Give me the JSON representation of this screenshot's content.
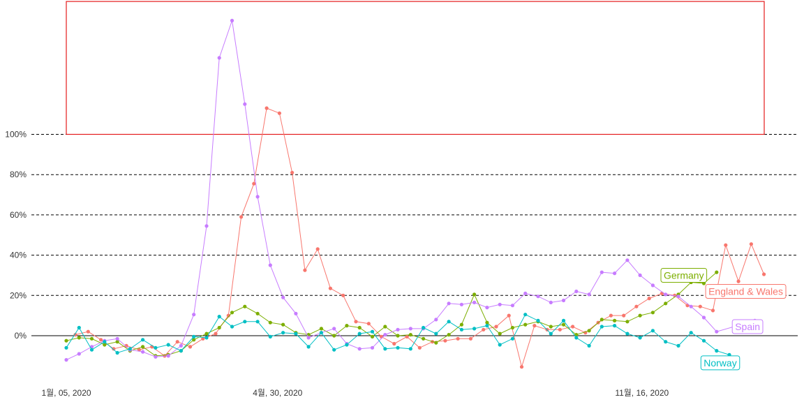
{
  "chart_data": {
    "type": "line",
    "y_unit": "%",
    "ylim": [
      -20,
      160
    ],
    "y_ticks": [
      0,
      20,
      40,
      60,
      80,
      100
    ],
    "y_tick_labels": [
      "0%",
      "20%",
      "40%",
      "60%",
      "80%",
      "100%"
    ],
    "x_start": "2020-01-05",
    "x_tick_labels": [
      {
        "date": "2020-01-05",
        "label": "1월, 05, 2020"
      },
      {
        "date": "2020-04-30",
        "label": "4월, 30, 2020"
      },
      {
        "date": "2020-11-16",
        "label": "11월, 16, 2020"
      }
    ],
    "grid": "dashed horizontal at y ticks",
    "legend": "direct labels at line ends",
    "highlight_box": {
      "y_from": 100,
      "y_to": 166,
      "color": "#e41a1c"
    },
    "series": [
      {
        "name": "England & Wales",
        "color": "#f8766d",
        "label_at": {
          "date": "2021-01-12",
          "value": 22
        },
        "points": [
          [
            "2020-01-10",
            0.5
          ],
          [
            "2020-01-17",
            2
          ],
          [
            "2020-01-24",
            -2
          ],
          [
            "2020-01-31",
            -6.5
          ],
          [
            "2020-02-07",
            -5
          ],
          [
            "2020-02-14",
            -7
          ],
          [
            "2020-02-21",
            -5.5
          ],
          [
            "2020-02-28",
            -10
          ],
          [
            "2020-03-06",
            -3
          ],
          [
            "2020-03-13",
            -5.5
          ],
          [
            "2020-03-20",
            -1.5
          ],
          [
            "2020-03-27",
            1
          ],
          [
            "2020-04-03",
            10
          ],
          [
            "2020-04-10",
            59
          ],
          [
            "2020-04-17",
            75.5
          ],
          [
            "2020-04-24",
            113
          ],
          [
            "2020-05-01",
            110.5
          ],
          [
            "2020-05-08",
            81
          ],
          [
            "2020-05-15",
            32.5
          ],
          [
            "2020-05-22",
            43
          ],
          [
            "2020-05-29",
            23.5
          ],
          [
            "2020-06-05",
            20
          ],
          [
            "2020-06-12",
            7
          ],
          [
            "2020-06-19",
            6
          ],
          [
            "2020-06-26",
            -0.5
          ],
          [
            "2020-07-03",
            -4
          ],
          [
            "2020-07-10",
            -0.5
          ],
          [
            "2020-07-17",
            -6
          ],
          [
            "2020-07-24",
            -3
          ],
          [
            "2020-07-31",
            -2.5
          ],
          [
            "2020-08-07",
            -1.5
          ],
          [
            "2020-08-14",
            -1.5
          ],
          [
            "2020-08-21",
            3
          ],
          [
            "2020-08-28",
            4.5
          ],
          [
            "2020-09-04",
            10
          ],
          [
            "2020-09-11",
            -15.5
          ],
          [
            "2020-09-18",
            5
          ],
          [
            "2020-09-25",
            3
          ],
          [
            "2020-10-02",
            3
          ],
          [
            "2020-10-09",
            4.5
          ],
          [
            "2020-10-16",
            1.5
          ],
          [
            "2020-10-23",
            6.5
          ],
          [
            "2020-10-30",
            10
          ],
          [
            "2020-11-06",
            10
          ],
          [
            "2020-11-13",
            14.5
          ],
          [
            "2020-11-20",
            18.5
          ],
          [
            "2020-11-27",
            21
          ],
          [
            "2020-12-04",
            20
          ],
          [
            "2020-12-11",
            15
          ],
          [
            "2020-12-18",
            14.5
          ],
          [
            "2020-12-25",
            12.5
          ],
          [
            "2021-01-01",
            45
          ],
          [
            "2021-01-08",
            27
          ],
          [
            "2021-01-15",
            45.5
          ],
          [
            "2021-01-22",
            30.5
          ]
        ]
      },
      {
        "name": "Germany",
        "color": "#7cae00",
        "label_at": {
          "date": "2020-12-09",
          "value": 30
        },
        "points": [
          [
            "2020-01-05",
            -2.5
          ],
          [
            "2020-01-12",
            -1
          ],
          [
            "2020-01-19",
            -1.5
          ],
          [
            "2020-01-26",
            -4.5
          ],
          [
            "2020-02-02",
            -3
          ],
          [
            "2020-02-09",
            -7.5
          ],
          [
            "2020-02-16",
            -5.5
          ],
          [
            "2020-02-23",
            -10
          ],
          [
            "2020-03-01",
            -9.5
          ],
          [
            "2020-03-08",
            -7.5
          ],
          [
            "2020-03-15",
            -2
          ],
          [
            "2020-03-22",
            1
          ],
          [
            "2020-03-29",
            4
          ],
          [
            "2020-04-05",
            11.5
          ],
          [
            "2020-04-12",
            14.5
          ],
          [
            "2020-04-19",
            11
          ],
          [
            "2020-04-26",
            6.5
          ],
          [
            "2020-05-03",
            5.5
          ],
          [
            "2020-05-10",
            1.5
          ],
          [
            "2020-05-17",
            0.5
          ],
          [
            "2020-05-24",
            3.5
          ],
          [
            "2020-05-31",
            0
          ],
          [
            "2020-06-07",
            5
          ],
          [
            "2020-06-14",
            4
          ],
          [
            "2020-06-21",
            -0.5
          ],
          [
            "2020-06-28",
            4.5
          ],
          [
            "2020-07-05",
            0
          ],
          [
            "2020-07-12",
            0.5
          ],
          [
            "2020-07-19",
            -1.5
          ],
          [
            "2020-07-26",
            -3.5
          ],
          [
            "2020-08-02",
            0.5
          ],
          [
            "2020-08-09",
            5.5
          ],
          [
            "2020-08-16",
            20.5
          ],
          [
            "2020-08-23",
            6.5
          ],
          [
            "2020-08-30",
            1
          ],
          [
            "2020-09-06",
            4
          ],
          [
            "2020-09-13",
            5.5
          ],
          [
            "2020-09-20",
            7
          ],
          [
            "2020-09-27",
            4.5
          ],
          [
            "2020-10-04",
            5.5
          ],
          [
            "2020-10-11",
            0.5
          ],
          [
            "2020-10-18",
            2.5
          ],
          [
            "2020-10-25",
            8
          ],
          [
            "2020-11-01",
            7.5
          ],
          [
            "2020-11-08",
            7
          ],
          [
            "2020-11-15",
            10
          ],
          [
            "2020-11-22",
            11.5
          ],
          [
            "2020-11-29",
            16
          ],
          [
            "2020-12-06",
            20.5
          ],
          [
            "2020-12-13",
            26.5
          ],
          [
            "2020-12-20",
            26
          ],
          [
            "2020-12-27",
            31.5
          ]
        ]
      },
      {
        "name": "Spain",
        "color": "#c77cff",
        "label_at": {
          "date": "2021-01-13",
          "value": 4.5
        },
        "points": [
          [
            "2020-01-05",
            -12
          ],
          [
            "2020-01-12",
            -9
          ],
          [
            "2020-01-19",
            -5.5
          ],
          [
            "2020-01-26",
            -2.5
          ],
          [
            "2020-02-02",
            -1.5
          ],
          [
            "2020-02-09",
            -7
          ],
          [
            "2020-02-16",
            -8
          ],
          [
            "2020-02-23",
            -10.5
          ],
          [
            "2020-03-01",
            -10
          ],
          [
            "2020-03-08",
            -5
          ],
          [
            "2020-03-15",
            10.5
          ],
          [
            "2020-03-22",
            54.5
          ],
          [
            "2020-03-29",
            138
          ],
          [
            "2020-04-05",
            156.5
          ],
          [
            "2020-04-12",
            115
          ],
          [
            "2020-04-19",
            69
          ],
          [
            "2020-04-26",
            35
          ],
          [
            "2020-05-03",
            19
          ],
          [
            "2020-05-10",
            11
          ],
          [
            "2020-05-17",
            -1
          ],
          [
            "2020-05-24",
            1.5
          ],
          [
            "2020-05-31",
            3.5
          ],
          [
            "2020-06-07",
            -4
          ],
          [
            "2020-06-14",
            -6.5
          ],
          [
            "2020-06-21",
            -6
          ],
          [
            "2020-06-28",
            0.5
          ],
          [
            "2020-07-05",
            3
          ],
          [
            "2020-07-12",
            3.5
          ],
          [
            "2020-07-19",
            3.5
          ],
          [
            "2020-07-26",
            8
          ],
          [
            "2020-08-02",
            16
          ],
          [
            "2020-08-09",
            15.5
          ],
          [
            "2020-08-16",
            16.5
          ],
          [
            "2020-08-23",
            14
          ],
          [
            "2020-08-30",
            15.5
          ],
          [
            "2020-09-06",
            15
          ],
          [
            "2020-09-13",
            21
          ],
          [
            "2020-09-20",
            19.5
          ],
          [
            "2020-09-27",
            16.5
          ],
          [
            "2020-10-04",
            17.5
          ],
          [
            "2020-10-11",
            22
          ],
          [
            "2020-10-18",
            20.5
          ],
          [
            "2020-10-25",
            31.5
          ],
          [
            "2020-11-01",
            31
          ],
          [
            "2020-11-08",
            37.5
          ],
          [
            "2020-11-15",
            30
          ],
          [
            "2020-11-22",
            25
          ],
          [
            "2020-11-29",
            20.5
          ],
          [
            "2020-12-06",
            19.5
          ],
          [
            "2020-12-13",
            14.5
          ],
          [
            "2020-12-20",
            9
          ],
          [
            "2020-12-27",
            2
          ],
          [
            "2021-01-17",
            7.5
          ]
        ]
      },
      {
        "name": "Norway",
        "color": "#00bfc4",
        "label_at": {
          "date": "2020-12-29",
          "value": -13.5
        },
        "points": [
          [
            "2020-01-05",
            -6
          ],
          [
            "2020-01-12",
            4
          ],
          [
            "2020-01-19",
            -7
          ],
          [
            "2020-01-26",
            -3
          ],
          [
            "2020-02-02",
            -8.5
          ],
          [
            "2020-02-09",
            -6.5
          ],
          [
            "2020-02-16",
            -2
          ],
          [
            "2020-02-23",
            -6
          ],
          [
            "2020-03-01",
            -4.5
          ],
          [
            "2020-03-08",
            -7.5
          ],
          [
            "2020-03-15",
            -0.5
          ],
          [
            "2020-03-22",
            -1
          ],
          [
            "2020-03-29",
            9.5
          ],
          [
            "2020-04-05",
            4.5
          ],
          [
            "2020-04-12",
            7
          ],
          [
            "2020-04-19",
            7
          ],
          [
            "2020-04-26",
            -0.5
          ],
          [
            "2020-05-03",
            1.5
          ],
          [
            "2020-05-10",
            1
          ],
          [
            "2020-05-17",
            -5.5
          ],
          [
            "2020-05-24",
            1.5
          ],
          [
            "2020-05-31",
            -7
          ],
          [
            "2020-06-07",
            -4.5
          ],
          [
            "2020-06-14",
            1
          ],
          [
            "2020-06-21",
            2
          ],
          [
            "2020-06-28",
            -6.5
          ],
          [
            "2020-07-05",
            -6
          ],
          [
            "2020-07-12",
            -6.5
          ],
          [
            "2020-07-19",
            4
          ],
          [
            "2020-07-26",
            1
          ],
          [
            "2020-08-02",
            7
          ],
          [
            "2020-08-09",
            3
          ],
          [
            "2020-08-16",
            3.5
          ],
          [
            "2020-08-23",
            5
          ],
          [
            "2020-08-30",
            -4.5
          ],
          [
            "2020-09-06",
            -1.5
          ],
          [
            "2020-09-13",
            10.5
          ],
          [
            "2020-09-20",
            7.5
          ],
          [
            "2020-09-27",
            1
          ],
          [
            "2020-10-04",
            7.5
          ],
          [
            "2020-10-11",
            -1
          ],
          [
            "2020-10-18",
            -5
          ],
          [
            "2020-10-25",
            4.5
          ],
          [
            "2020-11-01",
            5
          ],
          [
            "2020-11-08",
            1
          ],
          [
            "2020-11-15",
            -1
          ],
          [
            "2020-11-22",
            2.5
          ],
          [
            "2020-11-29",
            -3
          ],
          [
            "2020-12-06",
            -5
          ],
          [
            "2020-12-13",
            1.5
          ],
          [
            "2020-12-20",
            -2.5
          ],
          [
            "2020-12-27",
            -7.5
          ],
          [
            "2021-01-03",
            -9.5
          ]
        ]
      }
    ]
  }
}
